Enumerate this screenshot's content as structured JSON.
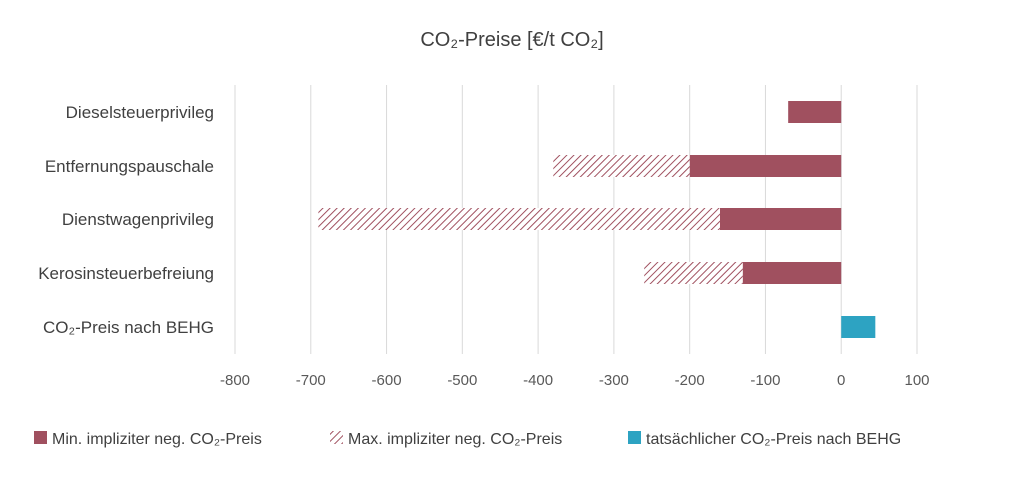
{
  "chart_data": {
    "type": "bar",
    "orientation": "horizontal",
    "stacked": true,
    "title": "CO₂-Preise [€/t CO₂]",
    "xlabel": "",
    "ylabel": "",
    "xlim": [
      -800,
      100
    ],
    "xticks": [
      -800,
      -700,
      -600,
      -500,
      -400,
      -300,
      -200,
      -100,
      0,
      100
    ],
    "grid": true,
    "legend_position": "bottom",
    "categories": [
      "Dieselsteuerprivileg",
      "Entfernungspauschale",
      "Dienstwagenprivileg",
      "Kerosinsteuerbefreiung",
      "CO₂-Preis nach BEHG"
    ],
    "series": [
      {
        "name": "Min. impliziter neg. CO₂-Preis",
        "color": "#A0505F",
        "pattern": "solid",
        "values": [
          -70,
          -200,
          -160,
          -130,
          null
        ]
      },
      {
        "name": "Max. impliziter neg. CO₂-Preis",
        "color": "#A0505F",
        "pattern": "hatched",
        "values": [
          null,
          -180,
          -530,
          -130,
          null
        ]
      },
      {
        "name": "tatsächlicher CO₂-Preis nach BEHG",
        "color": "#2DA3C2",
        "pattern": "solid",
        "values": [
          null,
          null,
          null,
          null,
          45
        ]
      }
    ]
  }
}
